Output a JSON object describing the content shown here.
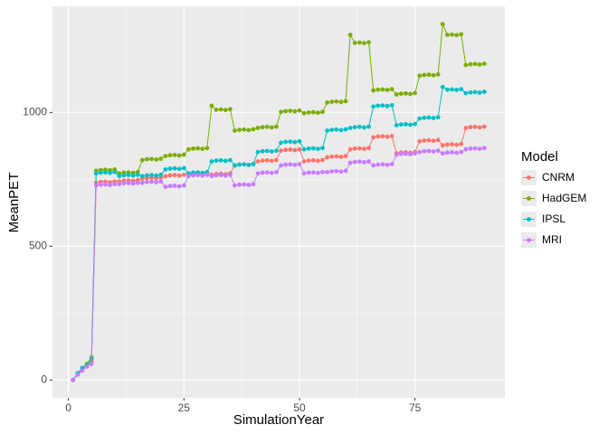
{
  "chart_data": {
    "type": "line",
    "x_label": "SimulationYear",
    "y_label": "MeanPET",
    "legend_title": "Model",
    "legend": "right",
    "grid": true,
    "points": true,
    "xlim": [
      -3.45,
      94.45
    ],
    "xticks": [
      0,
      25,
      50,
      75
    ],
    "ylim": [
      -66.5,
      1396.5
    ],
    "yticks": [
      0,
      500,
      1000
    ],
    "x": [
      1,
      2,
      3,
      4,
      5,
      6,
      7,
      8,
      9,
      10,
      11,
      12,
      13,
      14,
      15,
      16,
      17,
      18,
      19,
      20,
      21,
      22,
      23,
      24,
      25,
      26,
      27,
      28,
      29,
      30,
      31,
      32,
      33,
      34,
      35,
      36,
      37,
      38,
      39,
      40,
      41,
      42,
      43,
      44,
      45,
      46,
      47,
      48,
      49,
      50,
      51,
      52,
      53,
      54,
      55,
      56,
      57,
      58,
      59,
      60,
      61,
      62,
      63,
      64,
      65,
      66,
      67,
      68,
      69,
      70,
      71,
      72,
      73,
      74,
      75,
      76,
      77,
      78,
      79,
      80,
      81,
      82,
      83,
      84,
      85,
      86,
      87,
      88,
      89,
      90
    ],
    "series": [
      {
        "name": "CNRM",
        "color": "#F8766D",
        "values": [
          0,
          25,
          40,
          55,
          70,
          737,
          740,
          741,
          739,
          742,
          742,
          745,
          746,
          744,
          747,
          752,
          755,
          756,
          754,
          757,
          762,
          765,
          766,
          764,
          767,
          767,
          770,
          771,
          769,
          772,
          767,
          770,
          771,
          769,
          772,
          802,
          805,
          806,
          804,
          807,
          817,
          820,
          821,
          819,
          822,
          857,
          860,
          861,
          859,
          862,
          817,
          820,
          821,
          819,
          822,
          832,
          835,
          836,
          834,
          837,
          862,
          865,
          866,
          864,
          867,
          907,
          910,
          911,
          909,
          912,
          847,
          850,
          851,
          849,
          852,
          892,
          895,
          896,
          894,
          897,
          877,
          880,
          881,
          879,
          882,
          942,
          945,
          946,
          944,
          947
        ]
      },
      {
        "name": "HadGEM",
        "color": "#7CAE00",
        "values": [
          0,
          25,
          45,
          60,
          85,
          782,
          785,
          786,
          784,
          787,
          772,
          775,
          776,
          774,
          777,
          822,
          825,
          826,
          824,
          827,
          837,
          840,
          841,
          839,
          842,
          862,
          865,
          866,
          864,
          867,
          1025,
          1010,
          1011,
          1009,
          1012,
          932,
          935,
          936,
          934,
          937,
          942,
          945,
          946,
          944,
          947,
          1002,
          1005,
          1006,
          1004,
          1007,
          997,
          1000,
          1001,
          999,
          1002,
          1037,
          1040,
          1041,
          1039,
          1042,
          1290,
          1260,
          1261,
          1259,
          1262,
          1082,
          1085,
          1086,
          1084,
          1087,
          1067,
          1070,
          1071,
          1069,
          1072,
          1137,
          1140,
          1141,
          1139,
          1142,
          1330,
          1290,
          1291,
          1289,
          1292,
          1177,
          1180,
          1181,
          1179,
          1182
        ]
      },
      {
        "name": "IPSL",
        "color": "#00BFC4",
        "values": [
          0,
          25,
          45,
          55,
          80,
          772,
          775,
          776,
          774,
          777,
          762,
          765,
          766,
          764,
          767,
          762,
          765,
          766,
          764,
          767,
          787,
          790,
          791,
          789,
          792,
          772,
          775,
          776,
          774,
          777,
          817,
          820,
          821,
          819,
          822,
          802,
          805,
          806,
          804,
          807,
          852,
          855,
          856,
          854,
          857,
          887,
          890,
          891,
          889,
          892,
          862,
          865,
          866,
          864,
          867,
          932,
          935,
          936,
          934,
          937,
          942,
          945,
          946,
          944,
          947,
          1022,
          1025,
          1026,
          1024,
          1027,
          952,
          955,
          956,
          954,
          957,
          977,
          980,
          981,
          979,
          982,
          1095,
          1085,
          1086,
          1084,
          1087,
          1072,
          1075,
          1076,
          1074,
          1077
        ]
      },
      {
        "name": "MRI",
        "color": "#C77CFF",
        "values": [
          0,
          20,
          35,
          50,
          60,
          727,
          730,
          731,
          729,
          732,
          732,
          735,
          736,
          734,
          737,
          737,
          740,
          741,
          739,
          742,
          722,
          725,
          726,
          724,
          727,
          762,
          765,
          766,
          764,
          767,
          762,
          765,
          766,
          764,
          767,
          727,
          730,
          731,
          729,
          732,
          772,
          775,
          776,
          774,
          777,
          802,
          805,
          806,
          804,
          807,
          772,
          775,
          776,
          774,
          777,
          777,
          780,
          781,
          779,
          782,
          812,
          815,
          816,
          814,
          817,
          802,
          805,
          806,
          804,
          807,
          842,
          845,
          846,
          844,
          847,
          852,
          855,
          856,
          854,
          857,
          847,
          850,
          851,
          849,
          852,
          862,
          865,
          866,
          864,
          867
        ]
      }
    ]
  }
}
